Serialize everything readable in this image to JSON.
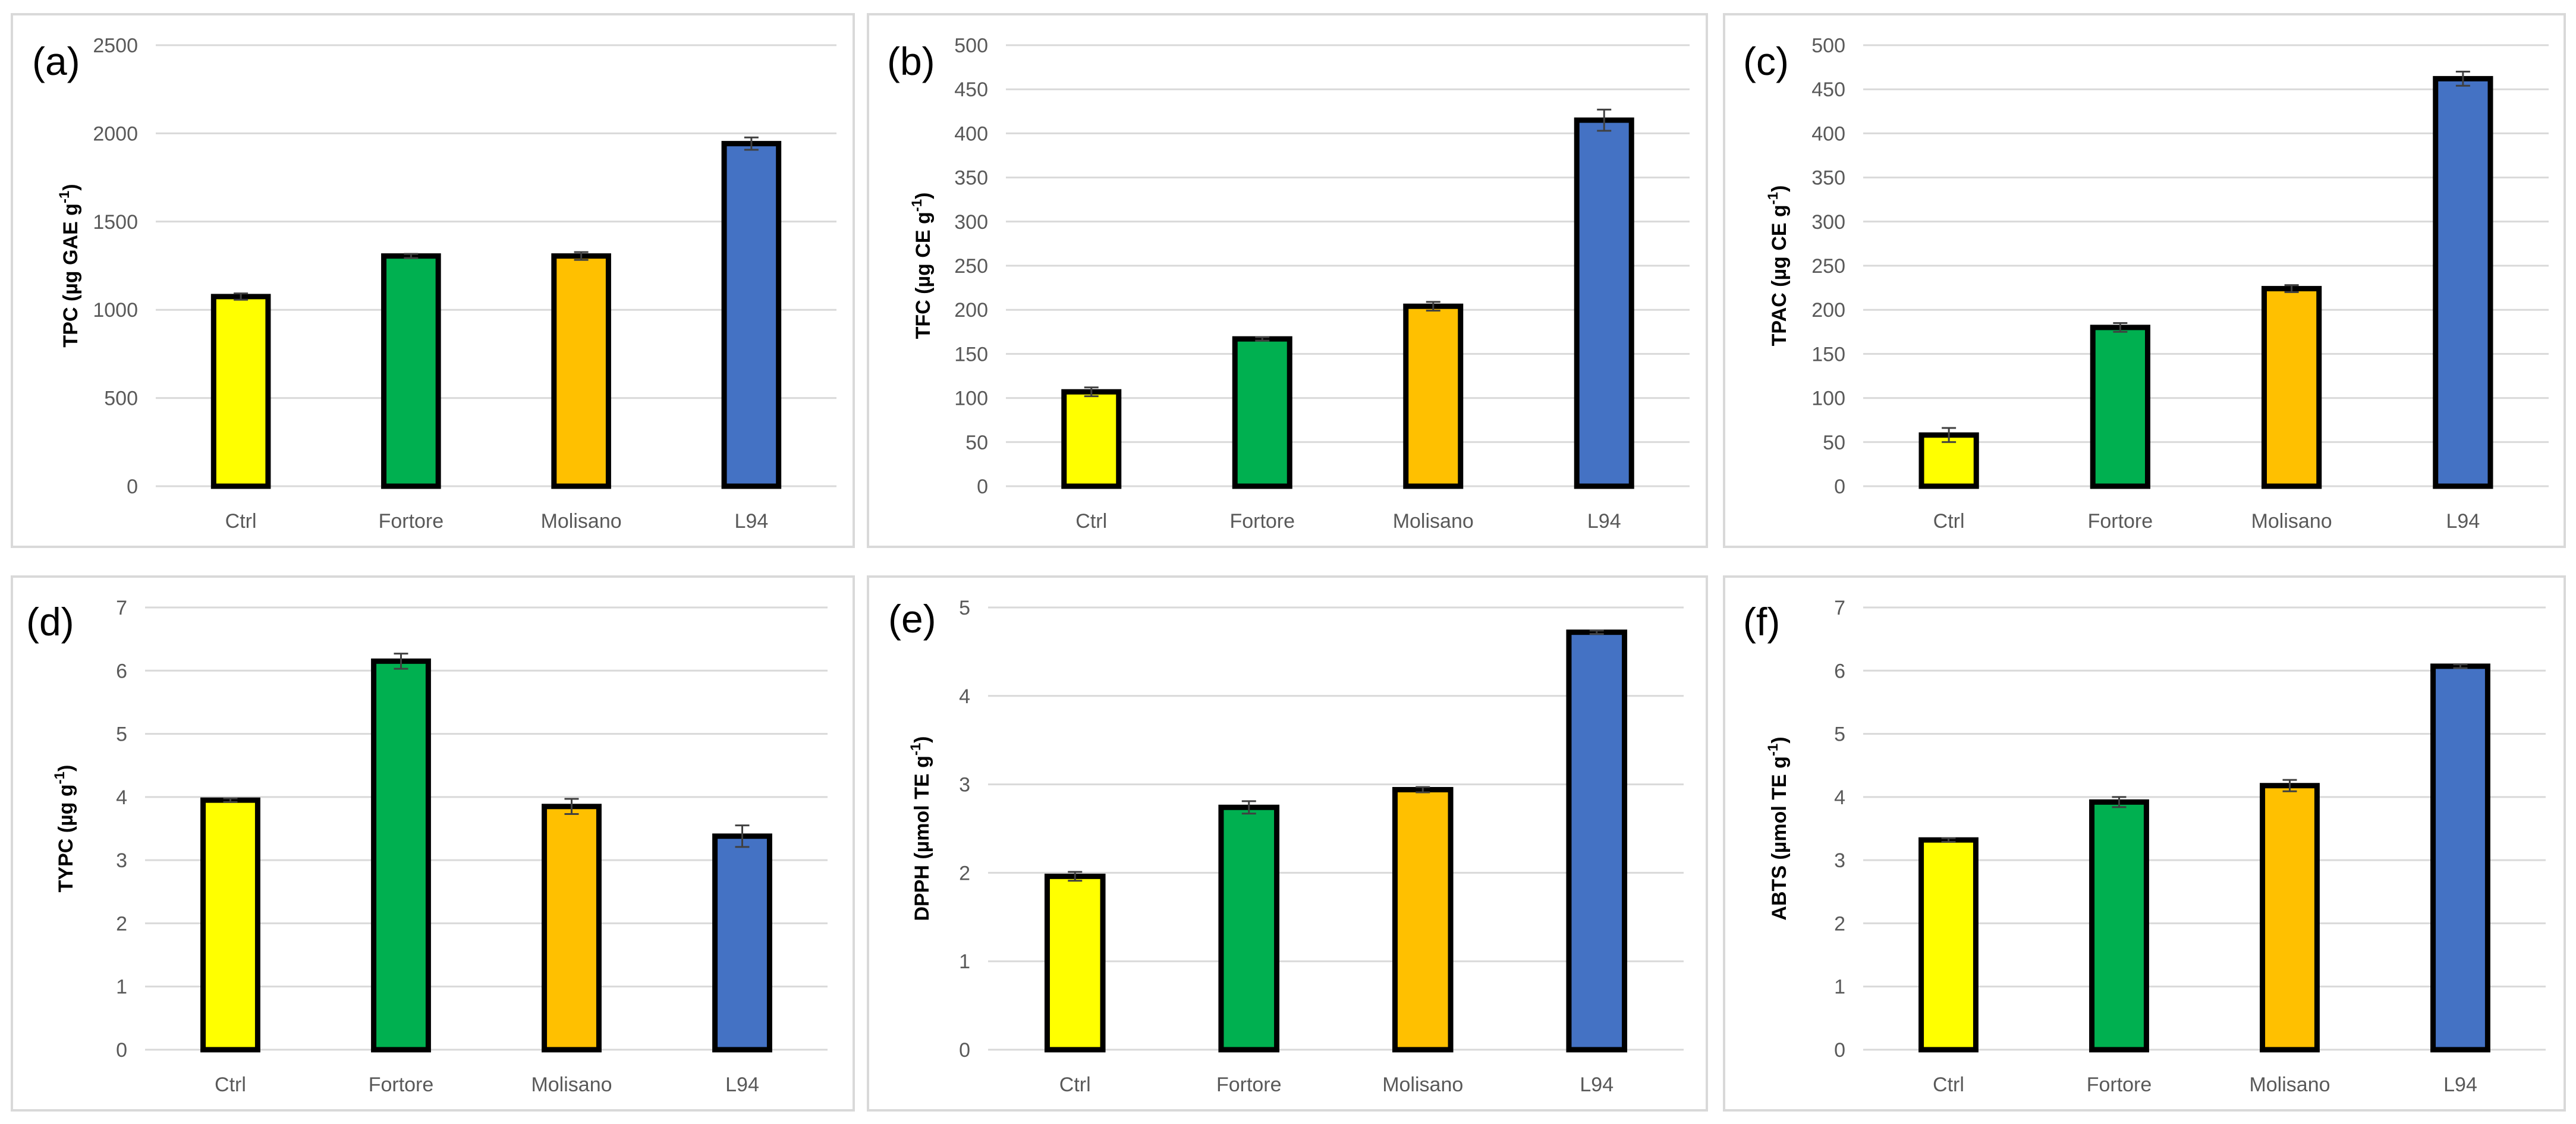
{
  "colors": {
    "Ctrl": "#FFFF00",
    "Fortore": "#00B050",
    "Molisano": "#FFC000",
    "L94": "#4472C4",
    "outline": "#000000",
    "grid": "#d9d9d9",
    "errorbar": "#404040"
  },
  "chart_data": [
    {
      "type": "bar",
      "panel_label": "(a)",
      "ylabel_main": "TPC (µg GAE g",
      "ylabel_sup": "-1",
      "ylabel_end": ")",
      "categories": [
        "Ctrl",
        "Fortore",
        "Molisano",
        "L94"
      ],
      "values": [
        1075,
        1305,
        1305,
        1942
      ],
      "errors": [
        18,
        12,
        22,
        35
      ],
      "ylim": [
        0,
        2500
      ],
      "yticks": [
        0,
        500,
        1000,
        1500,
        2000,
        2500
      ],
      "grid": true
    },
    {
      "type": "bar",
      "panel_label": "(b)",
      "ylabel_main": "TFC (µg CE g",
      "ylabel_sup": "-1",
      "ylabel_end": ")",
      "categories": [
        "Ctrl",
        "Fortore",
        "Molisano",
        "L94"
      ],
      "values": [
        107,
        167,
        204,
        415
      ],
      "errors": [
        5,
        2,
        5,
        12
      ],
      "ylim": [
        0,
        500
      ],
      "yticks": [
        0,
        50,
        100,
        150,
        200,
        250,
        300,
        350,
        400,
        450,
        500
      ],
      "grid": true
    },
    {
      "type": "bar",
      "panel_label": "(c)",
      "ylabel_main": "TPAC (µg CE g",
      "ylabel_sup": "-1",
      "ylabel_end": ")",
      "categories": [
        "Ctrl",
        "Fortore",
        "Molisano",
        "L94"
      ],
      "values": [
        58,
        180,
        224,
        462
      ],
      "errors": [
        8,
        5,
        4,
        8
      ],
      "ylim": [
        0,
        500
      ],
      "yticks": [
        0,
        50,
        100,
        150,
        200,
        250,
        300,
        350,
        400,
        450,
        500
      ],
      "grid": true
    },
    {
      "type": "bar",
      "panel_label": "(d)",
      "ylabel_main": "TYPC (µg g",
      "ylabel_sup": "-1",
      "ylabel_end": ")",
      "categories": [
        "Ctrl",
        "Fortore",
        "Molisano",
        "L94"
      ],
      "values": [
        3.95,
        6.15,
        3.85,
        3.38
      ],
      "errors": [
        0.03,
        0.12,
        0.12,
        0.17
      ],
      "ylim": [
        0,
        7
      ],
      "yticks": [
        0,
        1,
        2,
        3,
        4,
        5,
        6,
        7
      ],
      "grid": true
    },
    {
      "type": "bar",
      "panel_label": "(e)",
      "ylabel_main": "DPPH (µmol TE g",
      "ylabel_sup": "-1",
      "ylabel_end": ")",
      "categories": [
        "Ctrl",
        "Fortore",
        "Molisano",
        "L94"
      ],
      "values": [
        1.96,
        2.74,
        2.94,
        4.72
      ],
      "errors": [
        0.05,
        0.07,
        0.03,
        0.02
      ],
      "ylim": [
        0,
        5
      ],
      "yticks": [
        0,
        1,
        2,
        3,
        4,
        5
      ],
      "grid": true
    },
    {
      "type": "bar",
      "panel_label": "(f)",
      "ylabel_main": "ABTS (µmol TE g",
      "ylabel_sup": "-1",
      "ylabel_end": ")",
      "categories": [
        "Ctrl",
        "Fortore",
        "Molisano",
        "L94"
      ],
      "values": [
        3.32,
        3.92,
        4.18,
        6.07
      ],
      "errors": [
        0.03,
        0.08,
        0.09,
        0.03
      ],
      "ylim": [
        0,
        7
      ],
      "yticks": [
        0,
        1,
        2,
        3,
        4,
        5,
        6,
        7
      ],
      "grid": true
    }
  ]
}
